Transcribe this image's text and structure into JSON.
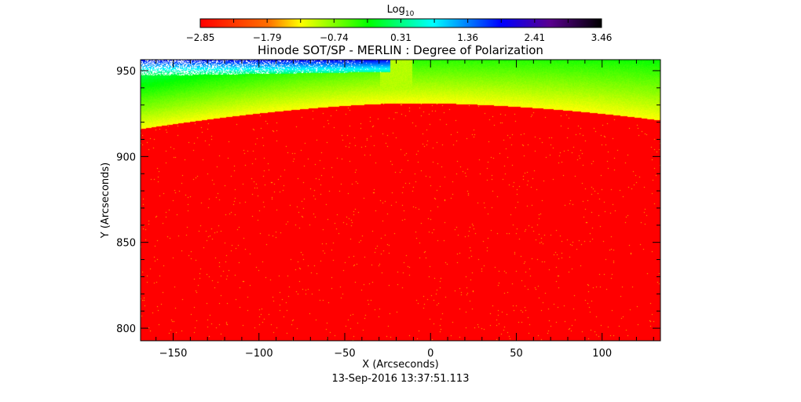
{
  "chart_data": {
    "type": "heatmap",
    "title": "Hinode SOT/SP - MERLIN : Degree of Polarization",
    "xlabel": "X (Arcseconds)",
    "ylabel": "Y (Arcseconds)",
    "subtitle": "13-Sep-2016 13:37:51.113",
    "xlim": [
      -169,
      134
    ],
    "ylim": [
      792.7,
      956.4
    ],
    "xticks": [
      -150,
      -100,
      -50,
      0,
      50,
      100
    ],
    "yticks": [
      800,
      850,
      900,
      950
    ],
    "colorbar": {
      "label": "Log",
      "label_sub": "10",
      "range": [
        -2.85,
        3.46
      ],
      "tick_labels": [
        "-2.85",
        "-1.79",
        "-0.74",
        "0.31",
        "1.36",
        "2.41",
        "3.46"
      ],
      "colormap": [
        "#ff0000",
        "#ff8000",
        "#ffff00",
        "#00ff00",
        "#00ffff",
        "#0000ff",
        "#6a00a8",
        "#000000"
      ]
    },
    "grid": false
  }
}
